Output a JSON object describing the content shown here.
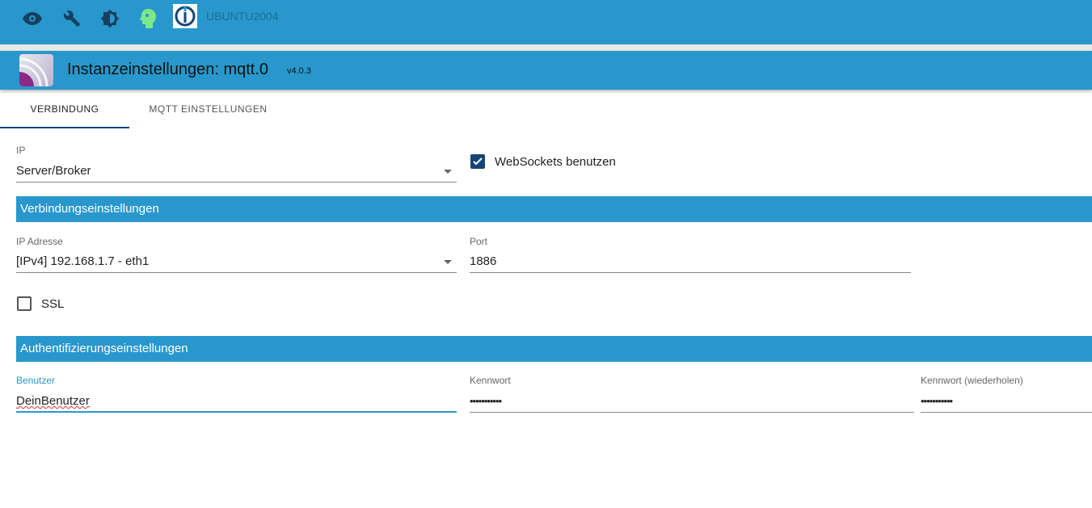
{
  "topbar": {
    "icons": [
      "eye-icon",
      "wrench-icon",
      "brightness-icon",
      "head-icon",
      "iobroker-logo"
    ],
    "host": "UBUNTU2004"
  },
  "header": {
    "title": "Instanzeinstellungen: mqtt.0",
    "version": "v4.0.3"
  },
  "tabs": [
    {
      "label": "VERBINDUNG",
      "active": true
    },
    {
      "label": "MQTT EINSTELLUNGEN",
      "active": false
    }
  ],
  "form": {
    "ip_label": "IP",
    "ip_value": "Server/Broker",
    "websockets_label": "WebSockets benutzen",
    "websockets_checked": true,
    "section1": "Verbindungseinstellungen",
    "ipaddr_label": "IP Adresse",
    "ipaddr_value": "[IPv4] 192.168.1.7 - eth1",
    "port_label": "Port",
    "port_value": "1886",
    "ssl_label": "SSL",
    "ssl_checked": false,
    "section2": "Authentifizierungseinstellungen",
    "user_label": "Benutzer",
    "user_value": "DeinBenutzer",
    "pass_label": "Kennwort",
    "pass_value": "•••••••••••",
    "pass2_label": "Kennwort (wiederholen)",
    "pass2_value": "•••••••••••"
  },
  "colors": {
    "primary": "#2898cc",
    "accent": "#164477"
  }
}
